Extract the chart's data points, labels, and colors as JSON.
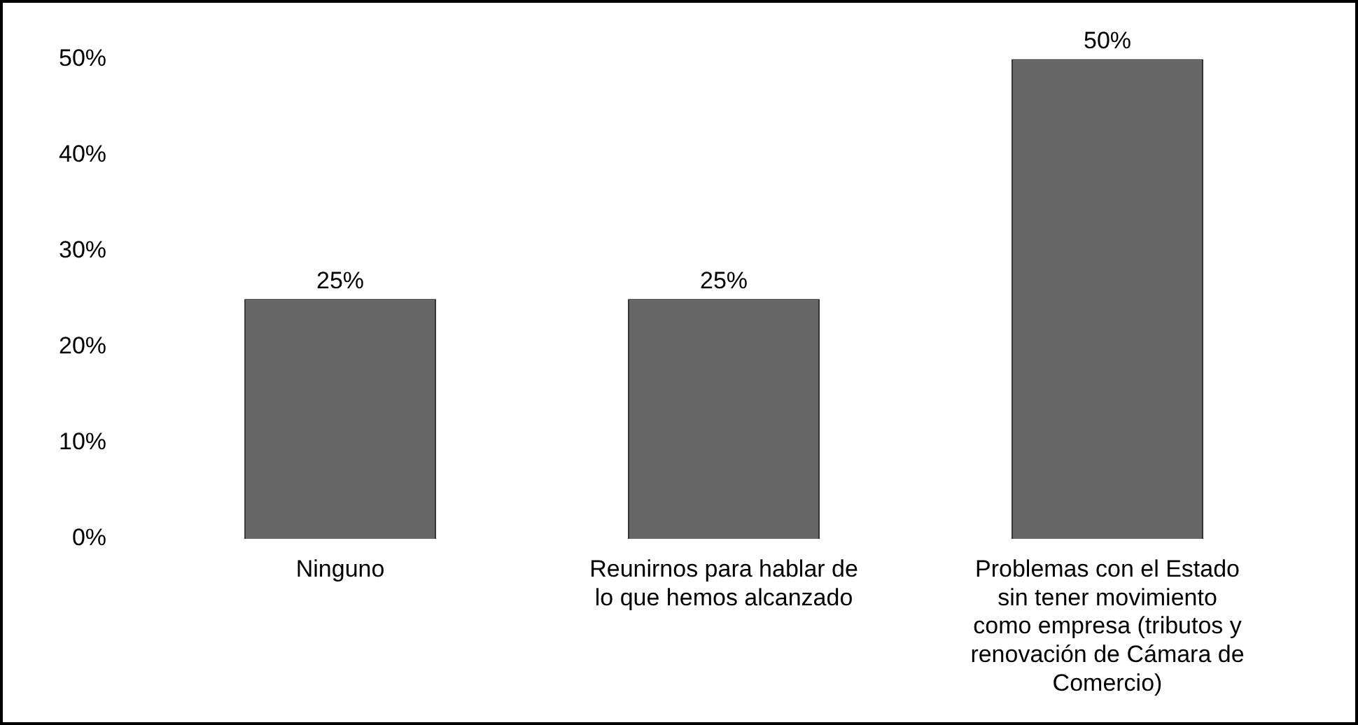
{
  "chart_data": {
    "type": "bar",
    "categories": [
      "Ninguno",
      "Reunirnos para hablar de lo que hemos alcanzado",
      "Problemas con el Estado sin tener movimiento como empresa (tributos y renovación de Cámara de Comercio)"
    ],
    "values": [
      25,
      25,
      50
    ],
    "color": "#666666",
    "value_labels": [
      "25%",
      "25%",
      "50%"
    ],
    "ylim": [
      0,
      50
    ],
    "yticks": [
      {
        "value": 0,
        "label": "0%"
      },
      {
        "value": 10,
        "label": "10%"
      },
      {
        "value": 20,
        "label": "20%"
      },
      {
        "value": 30,
        "label": "30%"
      },
      {
        "value": 40,
        "label": "40%"
      },
      {
        "value": 50,
        "label": "50%"
      }
    ],
    "grid": false,
    "legend": false
  }
}
